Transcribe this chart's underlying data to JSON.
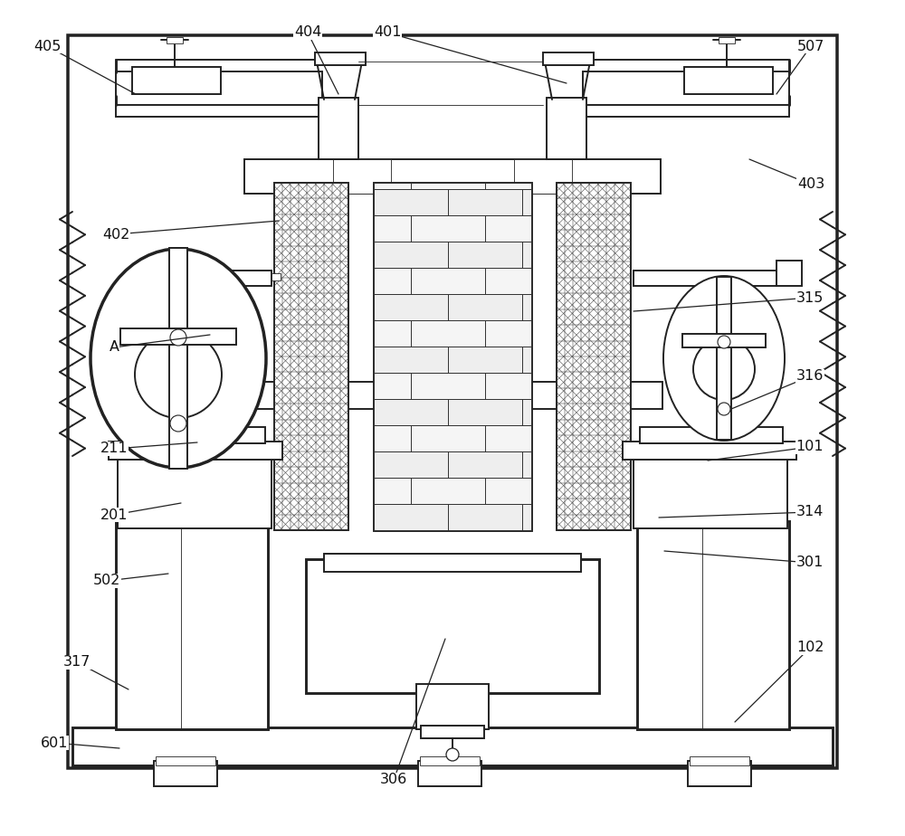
{
  "bg_color": "#ffffff",
  "line_color": "#222222",
  "lw_main": 1.4,
  "lw_thin": 0.6,
  "lw_leader": 0.9,
  "label_fontsize": 11.5,
  "fig_width": 10.0,
  "fig_height": 9.24
}
